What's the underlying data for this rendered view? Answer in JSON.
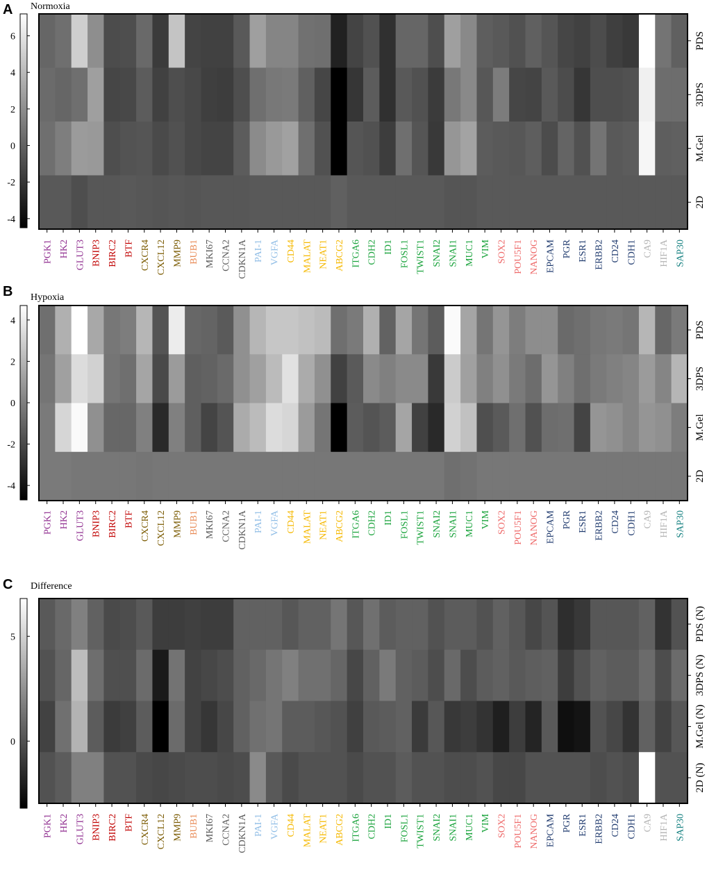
{
  "genes": [
    "PGK1",
    "HK2",
    "GLUT3",
    "BNIP3",
    "BIRC2",
    "BTF",
    "CXCR4",
    "CXCL12",
    "MMP9",
    "BUB1",
    "MKI67",
    "CCNA2",
    "CDKN1A",
    "PAI-1",
    "VGFA",
    "CD44",
    "MALAT",
    "NEAT1",
    "ABCG2",
    "ITGA6",
    "CDH2",
    "ID1",
    "FOSL1",
    "TWIST1",
    "SNAI2",
    "SNAI1",
    "MUC1",
    "VIM",
    "SOX2",
    "POU5F1",
    "NANOG",
    "EPCAM",
    "PGR",
    "ESR1",
    "ERBB2",
    "CD24",
    "CDH1",
    "CA9",
    "HIF1A",
    "SAP30"
  ],
  "gene_colors": [
    "#8e2b8e",
    "#8e2b8e",
    "#8e2b8e",
    "#c00000",
    "#c00000",
    "#c00000",
    "#7a5a00",
    "#7a5a00",
    "#7a5a00",
    "#e88a55",
    "#595959",
    "#595959",
    "#595959",
    "#8fbde6",
    "#8fbde6",
    "#f5b800",
    "#f5b800",
    "#f5b800",
    "#f5b800",
    "#1aa33c",
    "#1aa33c",
    "#1aa33c",
    "#1aa33c",
    "#1aa33c",
    "#1aa33c",
    "#1aa33c",
    "#1aa33c",
    "#1aa33c",
    "#ee6a6a",
    "#ee6a6a",
    "#ee6a6a",
    "#1f3a6e",
    "#1f3a6e",
    "#1f3a6e",
    "#1f3a6e",
    "#1f3a6e",
    "#1f3a6e",
    "#b3b3b3",
    "#b3b3b3",
    "#148080"
  ],
  "chart_data": [
    {
      "type": "heatmap",
      "panel": "A",
      "title": "Normoxia",
      "rows": [
        "PDS",
        "3DPS",
        "M.Gel",
        "2D"
      ],
      "colorbar_ticks": [
        6,
        4,
        2,
        0,
        -2,
        -4
      ],
      "vmin": -4.5,
      "vmax": 7.2,
      "values": [
        [
          0.2,
          0.6,
          5.0,
          2.0,
          -1.0,
          -0.9,
          0.3,
          -1.8,
          4.5,
          -1.4,
          -1.5,
          -1.5,
          -0.4,
          2.8,
          1.6,
          1.6,
          0.7,
          0.6,
          -3.0,
          -1.4,
          -0.8,
          -2.3,
          0.2,
          0.2,
          -0.9,
          2.8,
          1.8,
          -0.2,
          -0.4,
          -0.8,
          -0.1,
          -0.6,
          -1.3,
          -1.5,
          -1.0,
          -1.6,
          -1.9,
          7.2,
          0.8,
          -0.1
        ],
        [
          0.4,
          0.2,
          0.6,
          2.8,
          -1.3,
          -1.2,
          -0.3,
          -1.5,
          -0.9,
          -1.2,
          -1.6,
          -1.7,
          -0.9,
          0.6,
          1.0,
          1.1,
          -0.1,
          -1.3,
          -4.5,
          -2.0,
          -0.3,
          -2.3,
          -0.4,
          -0.8,
          -1.8,
          1.0,
          1.8,
          -0.5,
          1.2,
          -1.3,
          -1.4,
          -0.4,
          -1.0,
          -2.0,
          -0.9,
          -0.9,
          -0.8,
          6.5,
          0.5,
          0.5
        ],
        [
          0.6,
          1.3,
          2.6,
          2.5,
          -0.9,
          -0.7,
          -0.6,
          -1.1,
          -0.8,
          -1.2,
          -1.4,
          -1.4,
          -0.3,
          1.9,
          2.5,
          2.9,
          0.6,
          -0.8,
          -4.5,
          -0.6,
          -0.8,
          -1.7,
          0.6,
          -0.6,
          -1.9,
          2.4,
          3.0,
          -0.3,
          -0.4,
          -0.5,
          -0.2,
          -1.0,
          0.1,
          -0.8,
          0.8,
          -0.4,
          -0.3,
          6.8,
          -0.2,
          -0.1
        ],
        [
          -0.4,
          -0.4,
          -0.9,
          -0.5,
          -0.5,
          -0.4,
          -0.5,
          -0.6,
          -0.5,
          -0.6,
          -0.5,
          -0.5,
          -0.5,
          -0.4,
          -0.4,
          -0.4,
          -0.4,
          -0.4,
          -0.1,
          -0.4,
          -0.4,
          -0.4,
          -0.4,
          -0.4,
          -0.4,
          -0.6,
          -0.6,
          -0.4,
          -0.4,
          -0.4,
          -0.4,
          -0.4,
          -0.4,
          -0.4,
          -0.4,
          -0.4,
          -0.4,
          -0.4,
          -0.4,
          -0.4
        ]
      ]
    },
    {
      "type": "heatmap",
      "panel": "B",
      "title": "Hypoxia",
      "rows": [
        "PDS",
        "3DPS",
        "M.Gel",
        "2D"
      ],
      "colorbar_ticks": [
        4,
        2,
        0,
        -2,
        -4
      ],
      "vmin": -4.7,
      "vmax": 4.7,
      "values": [
        [
          -0.6,
          1.8,
          4.7,
          1.5,
          -0.3,
          -0.1,
          2.0,
          -1.6,
          4.0,
          -0.9,
          -1.0,
          -1.4,
          0.6,
          2.0,
          2.6,
          2.6,
          2.4,
          2.2,
          -0.6,
          -0.2,
          1.8,
          -1.1,
          1.4,
          -0.4,
          -1.3,
          4.5,
          1.4,
          -0.4,
          0.8,
          -0.1,
          0.5,
          0.5,
          -0.8,
          -0.6,
          -0.3,
          -0.2,
          -0.4,
          2.0,
          -0.9,
          -0.2
        ],
        [
          -0.4,
          1.2,
          3.4,
          3.0,
          -0.4,
          -0.6,
          1.4,
          -2.0,
          1.0,
          -1.2,
          -1.1,
          -0.8,
          0.6,
          1.2,
          2.2,
          3.6,
          1.6,
          0.6,
          -2.3,
          -1.4,
          0.4,
          0.0,
          0.4,
          0.4,
          -2.6,
          2.8,
          1.2,
          0.0,
          0.6,
          -0.2,
          -0.7,
          0.8,
          0.0,
          -0.6,
          -0.2,
          0.0,
          0.2,
          1.0,
          0.2,
          2.0
        ],
        [
          -0.2,
          3.2,
          4.5,
          0.6,
          -0.9,
          -0.9,
          0.0,
          -3.2,
          0.0,
          -1.2,
          -2.2,
          -1.6,
          1.6,
          2.2,
          3.4,
          3.2,
          1.0,
          -0.4,
          -4.7,
          -1.3,
          -1.6,
          -1.3,
          1.4,
          -2.3,
          -3.2,
          3.0,
          2.4,
          -1.8,
          -1.4,
          -0.6,
          -1.7,
          -0.7,
          -0.6,
          -2.2,
          0.8,
          0.6,
          0.2,
          0.8,
          0.6,
          -0.1
        ],
        [
          -0.2,
          -0.2,
          -0.3,
          -0.3,
          -0.3,
          -0.3,
          -0.4,
          -0.3,
          -0.3,
          -0.3,
          -0.3,
          -0.3,
          -0.3,
          -0.3,
          -0.3,
          -0.3,
          -0.3,
          -0.3,
          -0.3,
          -0.3,
          -0.3,
          -0.3,
          -0.3,
          -0.3,
          -0.3,
          -0.6,
          -0.5,
          -0.3,
          -0.3,
          -0.3,
          -0.3,
          -0.3,
          -0.3,
          -0.3,
          -0.3,
          -0.3,
          -0.3,
          -0.3,
          -0.3,
          -0.3
        ]
      ]
    },
    {
      "type": "heatmap",
      "panel": "C",
      "title": "Difference",
      "rows": [
        "PDS (N)",
        "3DPS (N)",
        "M.Gel (N)",
        "2D (N)"
      ],
      "colorbar_ticks": [
        5,
        0
      ],
      "vmin": -3.2,
      "vmax": 6.8,
      "values": [
        [
          0.3,
          0.9,
          1.8,
          0.6,
          -0.3,
          -0.2,
          0.3,
          -0.8,
          -0.8,
          -0.7,
          -0.8,
          -0.8,
          0.6,
          0.6,
          0.6,
          0.2,
          0.6,
          0.6,
          1.4,
          0.2,
          1.2,
          0.4,
          0.6,
          0.6,
          0.0,
          0.4,
          0.4,
          0.0,
          0.6,
          0.2,
          -0.4,
          0.1,
          -1.4,
          -1.0,
          0.2,
          0.2,
          0.2,
          0.6,
          -1.2,
          0.0
        ],
        [
          0.0,
          0.8,
          4.2,
          1.1,
          -0.1,
          -0.1,
          1.0,
          -2.2,
          1.3,
          -0.6,
          -0.4,
          -0.2,
          0.6,
          0.9,
          1.4,
          1.8,
          1.2,
          1.2,
          0.8,
          -0.4,
          0.6,
          1.6,
          0.6,
          0.4,
          -0.2,
          0.9,
          -0.2,
          0.4,
          0.6,
          0.3,
          0.5,
          0.6,
          -0.8,
          0.0,
          0.6,
          0.4,
          0.4,
          1.0,
          -0.2,
          1.0
        ],
        [
          -0.6,
          1.2,
          3.8,
          0.4,
          -0.9,
          -0.7,
          0.4,
          -3.2,
          1.0,
          -0.6,
          -1.1,
          -0.4,
          0.6,
          1.2,
          1.4,
          0.4,
          0.4,
          0.2,
          0.0,
          -0.7,
          0.3,
          0.4,
          0.6,
          -0.9,
          0.2,
          -1.0,
          -0.8,
          -1.2,
          -2.0,
          -0.8,
          -1.8,
          0.3,
          -2.6,
          -2.4,
          0.0,
          -0.4,
          -1.2,
          0.6,
          -0.6,
          0.2
        ],
        [
          0.0,
          0.4,
          1.8,
          1.8,
          0.0,
          0.0,
          -0.3,
          -0.4,
          -0.3,
          -0.2,
          -0.2,
          -0.3,
          -0.2,
          2.2,
          0.3,
          -0.3,
          0.0,
          0.0,
          0.0,
          -0.3,
          0.0,
          0.0,
          0.4,
          0.0,
          0.0,
          -0.2,
          -0.2,
          0.0,
          -0.4,
          -0.4,
          0.0,
          0.0,
          0.0,
          0.0,
          -0.2,
          0.0,
          -0.2,
          6.8,
          0.0,
          0.0
        ]
      ]
    }
  ]
}
